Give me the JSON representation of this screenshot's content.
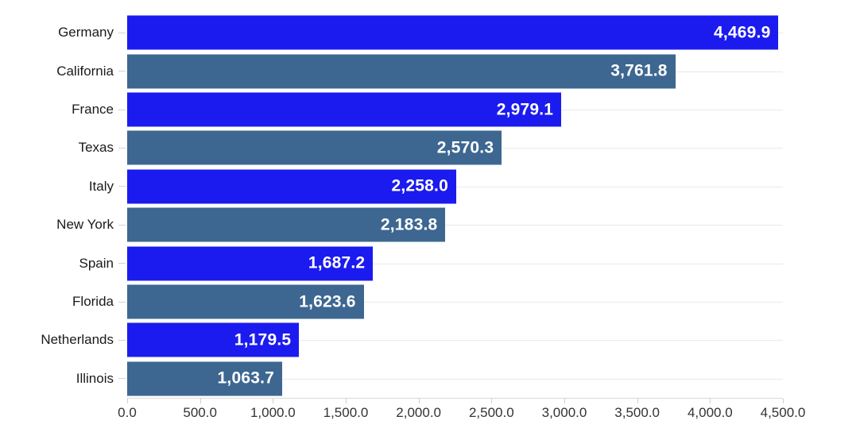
{
  "chart_data": {
    "type": "bar",
    "orientation": "horizontal",
    "title": "",
    "xlabel": "",
    "ylabel": "",
    "legend": "none",
    "grid": "light horizontal line per category row",
    "xlim": [
      0,
      4500
    ],
    "categories": [
      "Germany",
      "California",
      "France",
      "Texas",
      "Italy",
      "New York",
      "Spain",
      "Florida",
      "Netherlands",
      "Illinois"
    ],
    "values": [
      4469.9,
      3761.8,
      2979.1,
      2570.3,
      2258.0,
      2183.8,
      1687.2,
      1623.6,
      1179.5,
      1063.7
    ],
    "value_labels": [
      "4,469.9",
      "3,761.8",
      "2,979.1",
      "2,570.3",
      "2,258.0",
      "2,183.8",
      "1,687.2",
      "1,623.6",
      "1,179.5",
      "1,063.7"
    ],
    "groups": [
      "europe",
      "us_state",
      "europe",
      "us_state",
      "europe",
      "us_state",
      "europe",
      "us_state",
      "europe",
      "us_state"
    ],
    "palette": {
      "europe": "#1b1bef",
      "us_state": "#3d6791"
    },
    "value_label_color": "#ffffff",
    "x_ticks": [
      "0.0",
      "500.0",
      "1,000.0",
      "1,500.0",
      "2,000.0",
      "2,500.0",
      "3,000.0",
      "3,500.0",
      "4,000.0",
      "4,500.0"
    ],
    "x_tick_values": [
      0,
      500,
      1000,
      1500,
      2000,
      2500,
      3000,
      3500,
      4000,
      4500
    ]
  }
}
